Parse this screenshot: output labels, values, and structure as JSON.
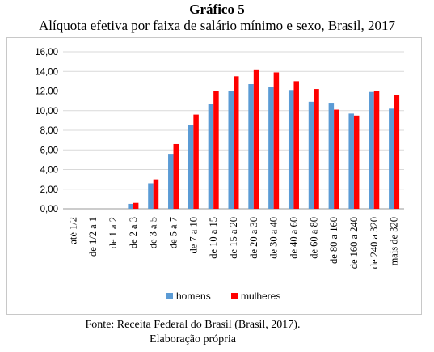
{
  "chart_data": {
    "type": "bar",
    "title": "Gráfico 5",
    "subtitle": "Alíquota efetiva por faixa de salário mínimo e sexo, Brasil, 2017",
    "categories": [
      "até 1/2",
      "de 1/2 a 1",
      "de 1 a 2",
      "de 2 a 3",
      "de 3 a 5",
      "de 5 a 7",
      "de 7 a 10",
      "de 10 a 15",
      "de 15 a 20",
      "de 20 a 30",
      "de 30 a 40",
      "de 40 a 60",
      "de 60 a 80",
      "de 80 a 160",
      "de 160 a 240",
      "de 240 a 320",
      "mais de 320"
    ],
    "series": [
      {
        "name": "homens",
        "color": "#5b9bd5",
        "values": [
          0,
          0,
          0,
          0.5,
          2.6,
          5.6,
          8.5,
          10.7,
          12.0,
          12.7,
          12.4,
          12.1,
          10.9,
          10.8,
          9.7,
          11.9,
          10.2
        ]
      },
      {
        "name": "mulheres",
        "color": "#ff0000",
        "values": [
          0,
          0,
          0,
          0.6,
          3.0,
          6.6,
          9.6,
          12.0,
          13.5,
          14.2,
          13.9,
          13.0,
          12.2,
          10.1,
          9.5,
          12.0,
          11.6
        ]
      }
    ],
    "ylim": [
      0,
      16
    ],
    "yticks": [
      "0,00",
      "2,00",
      "4,00",
      "6,00",
      "8,00",
      "10,00",
      "12,00",
      "14,00",
      "16,00"
    ],
    "grid": true,
    "legend": "bottom"
  },
  "source_line": "Fonte: Receita Federal do Brasil (Brasil, 2017).",
  "elaboration_line": "Elaboração própria"
}
